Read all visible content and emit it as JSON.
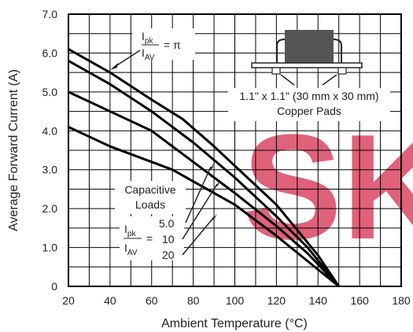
{
  "chart_data": {
    "type": "line",
    "title": "",
    "xlabel": "Ambient Temperature (°C)",
    "ylabel": "Average Forward Current (A)",
    "xlim": [
      20,
      180
    ],
    "ylim": [
      0,
      7
    ],
    "x_ticks": [
      "20",
      "40",
      "60",
      "80",
      "100",
      "120",
      "140",
      "160",
      "180"
    ],
    "y_ticks": [
      "0",
      "1.0",
      "2.0",
      "3.0",
      "4.0",
      "5.0",
      "6.0",
      "7.0"
    ],
    "grid": true,
    "series": [
      {
        "name": "π",
        "x": [
          20,
          40,
          60,
          75,
          90,
          105,
          120,
          130,
          140,
          150
        ],
        "y": [
          6.1,
          5.5,
          4.8,
          4.3,
          3.6,
          2.85,
          2.1,
          1.45,
          0.8,
          0
        ]
      },
      {
        "name": "",
        "x": [
          20,
          40,
          60,
          80,
          100,
          120,
          135,
          150
        ],
        "y": [
          5.8,
          5.2,
          4.5,
          3.7,
          2.8,
          1.8,
          1.0,
          0
        ]
      },
      {
        "name": "5.0",
        "x": [
          20,
          40,
          60,
          80,
          100,
          120,
          135,
          150
        ],
        "y": [
          5.0,
          4.5,
          4.0,
          3.2,
          2.4,
          1.55,
          0.85,
          0
        ]
      },
      {
        "name": "10",
        "x": [
          20,
          40,
          60,
          70,
          80,
          100,
          120,
          135,
          150
        ],
        "y": [
          4.1,
          3.6,
          3.2,
          3.0,
          2.7,
          2.1,
          1.3,
          0.65,
          0
        ]
      },
      {
        "name": "20",
        "x": [],
        "y": []
      }
    ]
  },
  "annotations": {
    "ipk_top": "I",
    "pk_top": "pk",
    "iav_top": "I",
    "av_top": "AV",
    "eq_pi": "= π",
    "pad_size": "1.1\" x 1.1\" (30 mm x 30 mm)",
    "pad_label": "Copper Pads",
    "capacitive": "Capacitive",
    "loads": "Loads",
    "ipk_bot": "I",
    "pk_bot": "pk",
    "iav_bot": "I",
    "av_bot": "AV",
    "eq": "=",
    "val1": "5.0",
    "val2": "10",
    "val3": "20"
  },
  "watermark": {
    "text": "SK",
    "color": "#e0617a"
  }
}
